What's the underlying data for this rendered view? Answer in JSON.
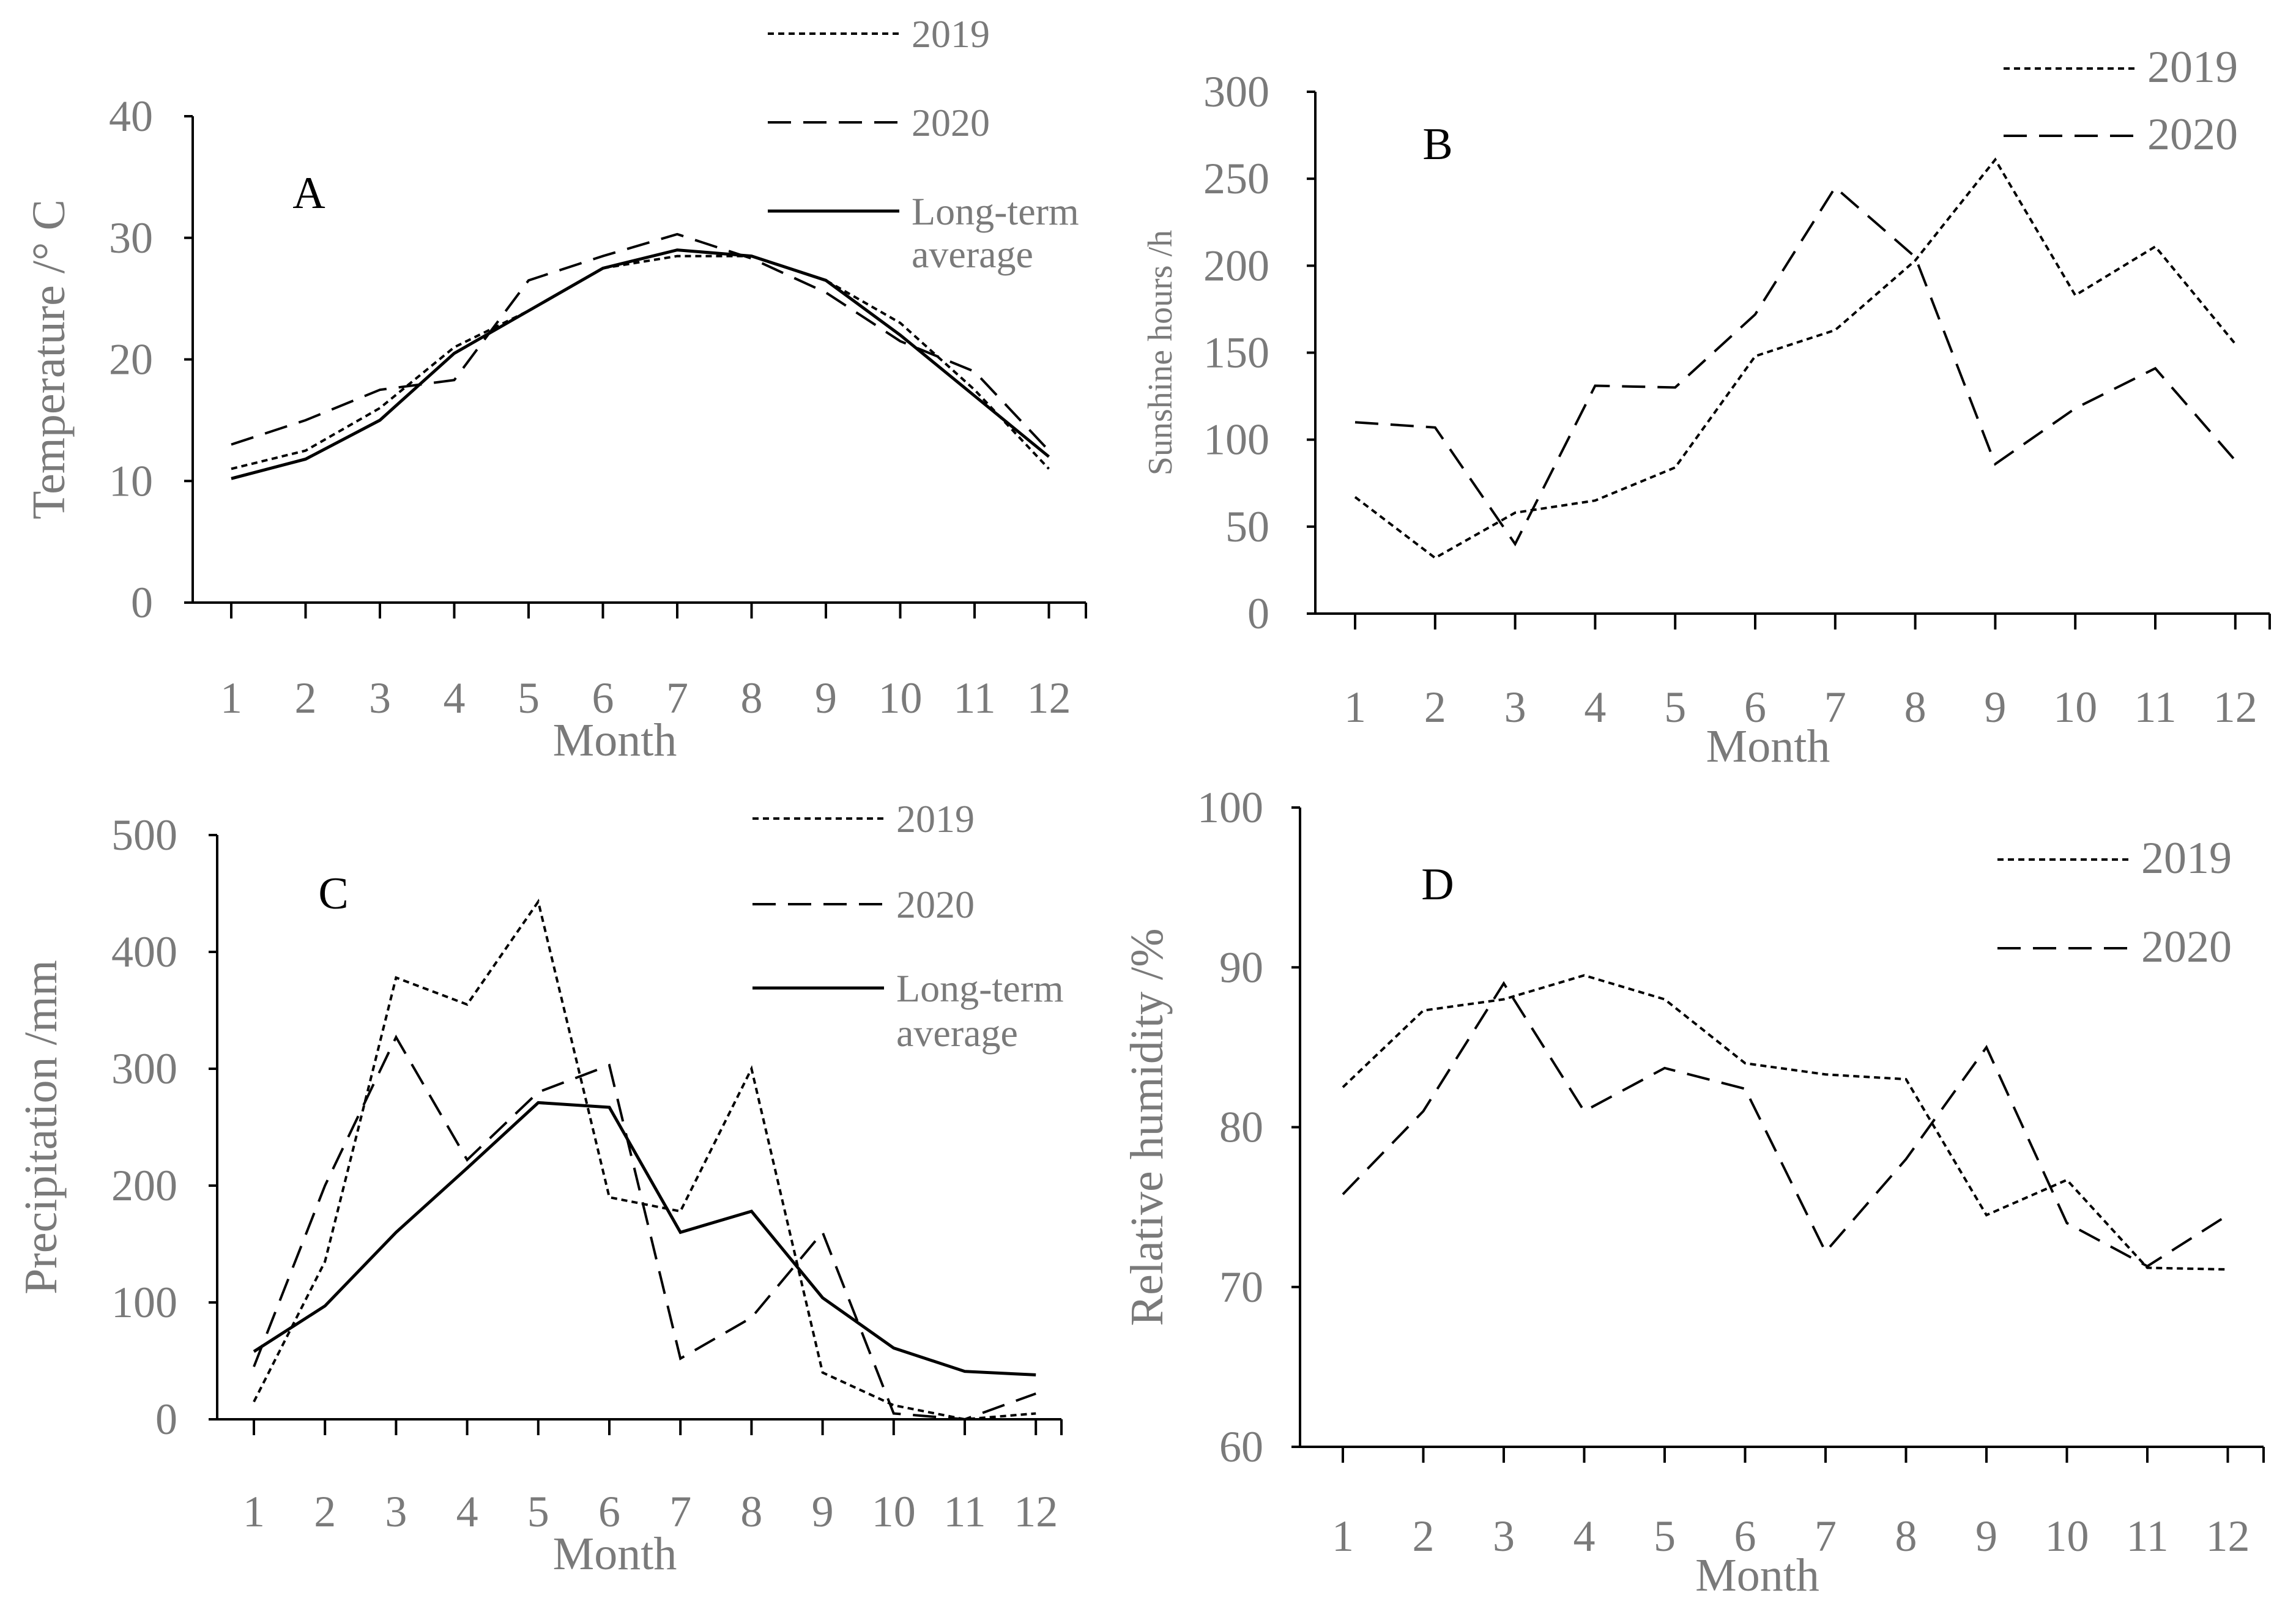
{
  "chart_data": [
    {
      "type": "line",
      "panel": "A",
      "categories": [
        "1",
        "2",
        "3",
        "4",
        "5",
        "6",
        "7",
        "8",
        "9",
        "10",
        "11",
        "12"
      ],
      "series": [
        {
          "name": "2019",
          "style": "dotted",
          "values": [
            11,
            12.5,
            16,
            21,
            24,
            27.5,
            28.5,
            28.5,
            26.5,
            23,
            17.5,
            11
          ]
        },
        {
          "name": "2020",
          "style": "dashed",
          "values": [
            13,
            15,
            17.5,
            18.3,
            26.5,
            28.5,
            30.3,
            28.3,
            25.5,
            21.5,
            19,
            12.5
          ]
        },
        {
          "name": "Long-term average",
          "style": "solid",
          "values": [
            10.2,
            11.8,
            15,
            20.5,
            24,
            27.5,
            29,
            28.5,
            26.5,
            22,
            17,
            12
          ]
        }
      ],
      "legend": [
        "2019",
        "2020",
        "Long-term",
        "average"
      ],
      "xlabel": "Month",
      "ylabel": "Temperature /°  C",
      "ylim": [
        0,
        40
      ],
      "yticks": [
        "0",
        "10",
        "20",
        "30",
        "40"
      ]
    },
    {
      "type": "line",
      "panel": "B",
      "categories": [
        "1",
        "2",
        "3",
        "4",
        "5",
        "6",
        "7",
        "8",
        "9",
        "10",
        "11",
        "12"
      ],
      "series": [
        {
          "name": "2019",
          "style": "dotted",
          "values": [
            67,
            32,
            58,
            65,
            84,
            148,
            163,
            203,
            261,
            183,
            211,
            155
          ]
        },
        {
          "name": "2020",
          "style": "dashed",
          "values": [
            110,
            107,
            40,
            131,
            130,
            172,
            245,
            205,
            86,
            118,
            141,
            88
          ]
        }
      ],
      "legend": [
        "2019",
        "2020"
      ],
      "xlabel": "Month",
      "ylabel": "Sunshine hours /h",
      "ylim": [
        0,
        300
      ],
      "yticks": [
        "0",
        "50",
        "100",
        "150",
        "200",
        "250",
        "300"
      ]
    },
    {
      "type": "line",
      "panel": "C",
      "categories": [
        "1",
        "2",
        "3",
        "4",
        "5",
        "6",
        "7",
        "8",
        "9",
        "10",
        "11",
        "12"
      ],
      "series": [
        {
          "name": "2019",
          "style": "dotted",
          "values": [
            15,
            135,
            378,
            355,
            443,
            190,
            178,
            300,
            40,
            12,
            0,
            5
          ]
        },
        {
          "name": "2020",
          "style": "dashed",
          "values": [
            45,
            200,
            327,
            222,
            280,
            303,
            52,
            87,
            160,
            5,
            0,
            22
          ]
        },
        {
          "name": "Long-term average",
          "style": "solid",
          "values": [
            58,
            97,
            160,
            215,
            271,
            267,
            160,
            178,
            104,
            61,
            41,
            38
          ]
        }
      ],
      "legend": [
        "2019",
        "2020",
        "Long-term",
        "average"
      ],
      "xlabel": "Month",
      "ylabel": "Precipitation /mm",
      "ylim": [
        0,
        500
      ],
      "yticks": [
        "0",
        "100",
        "200",
        "300",
        "400",
        "500"
      ]
    },
    {
      "type": "line",
      "panel": "D",
      "categories": [
        "1",
        "2",
        "3",
        "4",
        "5",
        "6",
        "7",
        "8",
        "9",
        "10",
        "11",
        "12"
      ],
      "series": [
        {
          "name": "2019",
          "style": "dotted",
          "values": [
            82.5,
            87.3,
            88,
            89.5,
            88,
            84,
            83.3,
            83,
            74.5,
            76.7,
            71.2,
            71.1
          ]
        },
        {
          "name": "2020",
          "style": "dashed",
          "values": [
            75.8,
            81,
            89,
            81,
            83.7,
            82.4,
            72.2,
            78,
            85,
            74,
            71.3,
            74.5
          ]
        }
      ],
      "legend": [
        "2019",
        "2020"
      ],
      "xlabel": "Month",
      "ylabel": "Relative humidity /%",
      "ylim": [
        60,
        100
      ],
      "yticks": [
        "60",
        "70",
        "80",
        "90",
        "100"
      ]
    }
  ]
}
